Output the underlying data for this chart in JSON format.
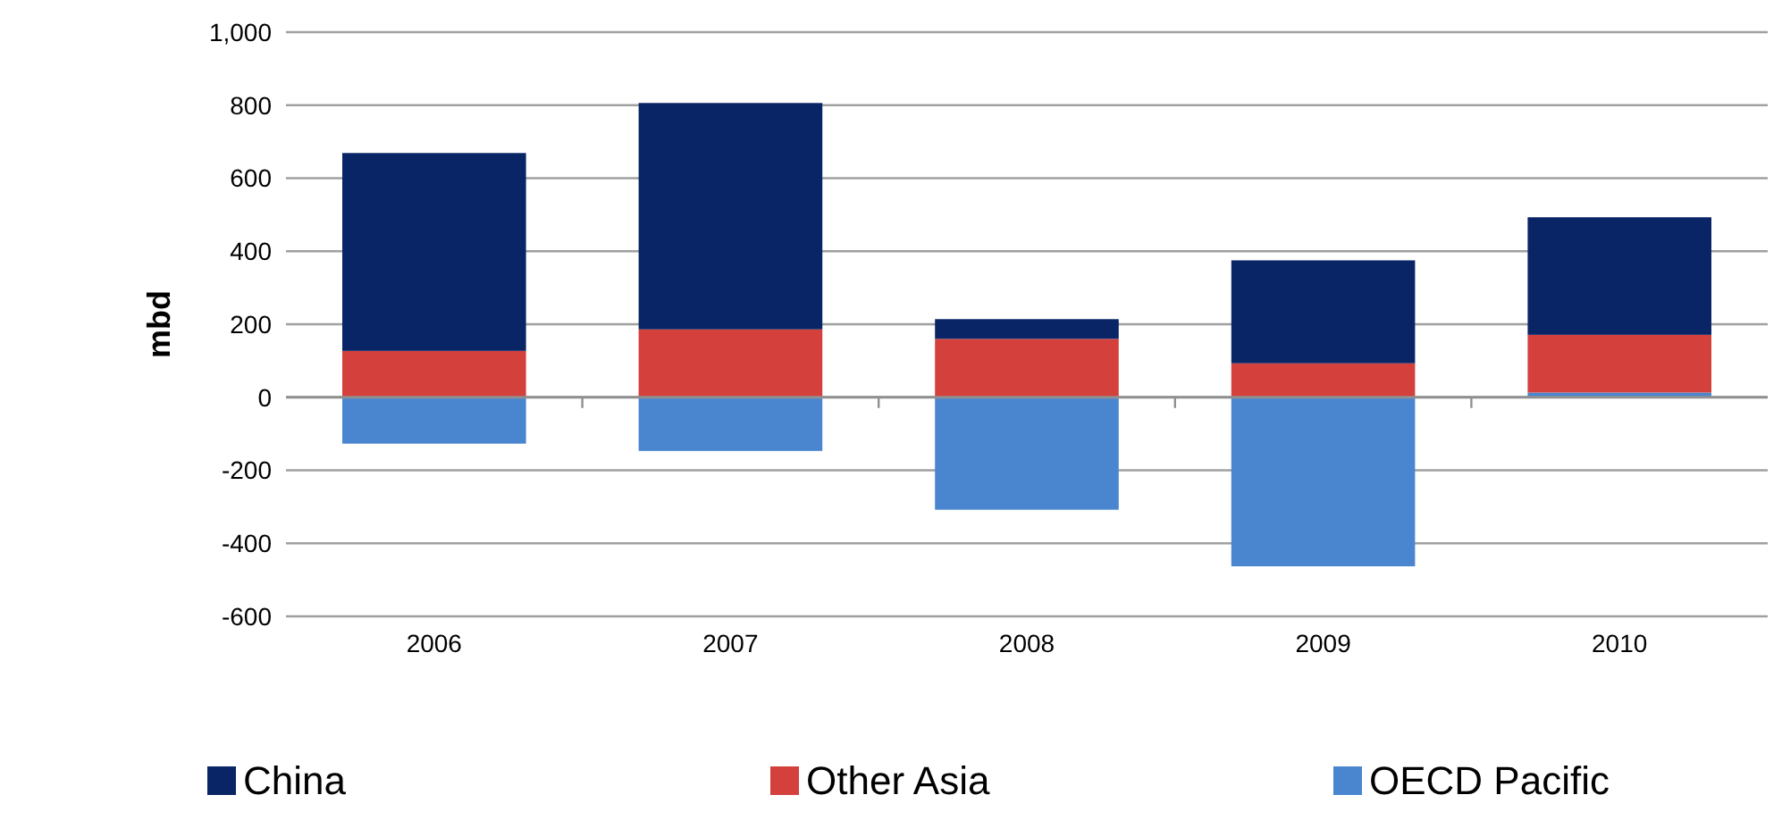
{
  "chart_data": {
    "type": "bar",
    "stacked": true,
    "ylabel": "mbd",
    "categories": [
      "2006",
      "2007",
      "2008",
      "2009",
      "2010"
    ],
    "series": [
      {
        "name": "OECD Pacific",
        "color": "#4a86d0",
        "values": [
          -127,
          -147,
          -308,
          -463,
          13
        ]
      },
      {
        "name": "Other Asia",
        "color": "#d4403c",
        "values": [
          127,
          186,
          160,
          93,
          158
        ]
      },
      {
        "name": "China",
        "color": "#0a2566",
        "values": [
          542,
          620,
          54,
          282,
          322
        ]
      }
    ],
    "ylim": [
      -600,
      1000
    ],
    "yticks": [
      -600,
      -400,
      -200,
      0,
      {
        "value": 200,
        "label": "200"
      },
      400,
      600,
      800,
      {
        "value": 1000,
        "label": "1,000"
      }
    ],
    "grid": "y",
    "legend": "bottom"
  }
}
